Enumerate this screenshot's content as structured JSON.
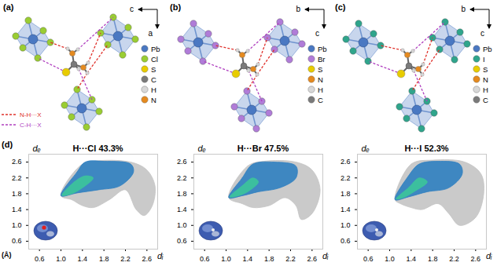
{
  "figure": {
    "structure_panels": [
      {
        "label": "(a)",
        "axes": [
          "c",
          "a"
        ],
        "legend": [
          {
            "label": "Pb",
            "color": "#4a78c2"
          },
          {
            "label": "Cl",
            "color": "#9acd32"
          },
          {
            "label": "S",
            "color": "#e8cc00"
          },
          {
            "label": "C",
            "color": "#7a7a7a"
          },
          {
            "label": "H",
            "color": "#d8d8d8"
          },
          {
            "label": "N",
            "color": "#e58a1f"
          }
        ]
      },
      {
        "label": "(b)",
        "axes": [
          "b",
          "c"
        ],
        "legend": [
          {
            "label": "Pb",
            "color": "#4a78c2"
          },
          {
            "label": "Br",
            "color": "#b07cd8"
          },
          {
            "label": "S",
            "color": "#e8cc00"
          },
          {
            "label": "N",
            "color": "#e58a1f"
          },
          {
            "label": "H",
            "color": "#d8d8d8"
          },
          {
            "label": "C",
            "color": "#7a7a7a"
          }
        ]
      },
      {
        "label": "(c)",
        "axes": [
          "b",
          "c"
        ],
        "legend": [
          {
            "label": "Pb",
            "color": "#4a78c2"
          },
          {
            "label": "I",
            "color": "#2fa58c"
          },
          {
            "label": "S",
            "color": "#e8cc00"
          },
          {
            "label": "N",
            "color": "#e58a1f"
          },
          {
            "label": "H",
            "color": "#d8d8d8"
          },
          {
            "label": "C",
            "color": "#7a7a7a"
          }
        ]
      }
    ],
    "line_legend": [
      {
        "label": "N-H···X",
        "color": "#e0302a",
        "line_style": "dashed"
      },
      {
        "label": "C-H···X",
        "color": "#b03fbf",
        "line_style": "dashed"
      }
    ],
    "fingerprint_label": "(d)",
    "unit_label": "(Å)"
  },
  "chart_data": [
    {
      "type": "area",
      "title": "H···Cl 43.3%",
      "x_label": "dᵢ",
      "y_label": "dₑ",
      "xlim": [
        0.4,
        2.8
      ],
      "ylim": [
        0.4,
        2.8
      ],
      "xticks": [
        0.6,
        {
          "value": 1,
          "label": "1.0"
        },
        1.4,
        1.8,
        2.2,
        2.6
      ],
      "yticks": [
        0.6,
        {
          "value": 1,
          "label": "1.0"
        },
        1.4,
        1.8,
        2.2,
        2.6
      ],
      "series": [
        {
          "color": "#c4c4c4",
          "x": [
            1.0,
            1.35,
            1.6,
            2.3,
            2.6,
            2.75,
            2.7,
            2.55,
            2.4,
            2.2,
            1.9,
            1.6,
            1.4,
            1.2
          ],
          "y": [
            1.75,
            2.5,
            2.62,
            2.6,
            2.4,
            2.0,
            1.5,
            1.25,
            1.4,
            1.9,
            1.65,
            1.45,
            1.5,
            1.65
          ]
        },
        {
          "color": "#2f7fc0",
          "x": [
            1.0,
            1.3,
            1.45,
            1.8,
            2.3,
            2.35,
            2.1,
            1.7,
            1.3
          ],
          "y": [
            1.75,
            2.35,
            2.6,
            2.62,
            2.55,
            2.35,
            2.0,
            1.9,
            1.82
          ]
        },
        {
          "color": "#3cc59a",
          "x": [
            1.02,
            1.25,
            1.45,
            1.6,
            1.4,
            1.2
          ],
          "y": [
            1.76,
            2.1,
            2.25,
            2.2,
            1.95,
            1.8
          ]
        }
      ]
    },
    {
      "type": "area",
      "title": "H···Br 47.5%",
      "x_label": "dᵢ",
      "y_label": "dₑ",
      "xlim": [
        0.4,
        2.8
      ],
      "ylim": [
        0.4,
        2.8
      ],
      "xticks": [
        0.6,
        {
          "value": 1,
          "label": "1.0"
        },
        1.4,
        1.8,
        2.2,
        2.6
      ],
      "yticks": [
        0.6,
        {
          "value": 1,
          "label": "1.0"
        },
        1.4,
        1.8,
        2.2,
        2.6
      ],
      "series": [
        {
          "color": "#c4c4c4",
          "x": [
            1.05,
            1.4,
            1.7,
            2.3,
            2.6,
            2.75,
            2.6,
            2.4,
            2.3,
            2.1,
            1.8,
            1.5,
            1.3
          ],
          "y": [
            1.7,
            2.5,
            2.62,
            2.6,
            2.4,
            1.9,
            1.3,
            1.15,
            1.5,
            1.7,
            1.5,
            1.45,
            1.55
          ]
        },
        {
          "color": "#2f7fc0",
          "x": [
            1.05,
            1.3,
            1.5,
            1.9,
            2.3,
            2.3,
            2.0,
            1.6,
            1.3
          ],
          "y": [
            1.7,
            2.2,
            2.55,
            2.6,
            2.5,
            2.2,
            1.95,
            1.85,
            1.75
          ]
        },
        {
          "color": "#3cc59a",
          "x": [
            1.07,
            1.3,
            1.5,
            1.6,
            1.4,
            1.2
          ],
          "y": [
            1.72,
            2.0,
            2.2,
            2.1,
            1.85,
            1.74
          ]
        }
      ]
    },
    {
      "type": "area",
      "title": "H···I 52.3%",
      "x_label": "dᵢ",
      "y_label": "dₑ",
      "xlim": [
        0.4,
        2.8
      ],
      "ylim": [
        0.4,
        2.8
      ],
      "xticks": [
        0.6,
        {
          "value": 1,
          "label": "1.0"
        },
        1.4,
        1.8,
        2.2,
        2.6
      ],
      "yticks": [
        0.6,
        {
          "value": 1,
          "label": "1.0"
        },
        1.4,
        1.8,
        2.2,
        2.6
      ],
      "series": [
        {
          "color": "#c4c4c4",
          "x": [
            1.1,
            1.4,
            1.8,
            2.4,
            2.7,
            2.75,
            2.6,
            2.3,
            2.1,
            1.9,
            1.6,
            1.4,
            1.2
          ],
          "y": [
            1.65,
            2.55,
            2.65,
            2.6,
            2.3,
            1.8,
            1.2,
            1.0,
            1.3,
            1.55,
            1.4,
            1.45,
            1.55
          ]
        },
        {
          "color": "#2f7fc0",
          "x": [
            1.1,
            1.35,
            1.55,
            1.9,
            2.3,
            2.35,
            2.1,
            1.7,
            1.35
          ],
          "y": [
            1.65,
            2.25,
            2.55,
            2.62,
            2.55,
            2.3,
            1.95,
            1.85,
            1.72
          ]
        },
        {
          "color": "#3cc59a",
          "x": [
            1.12,
            1.35,
            1.55,
            1.7,
            1.45,
            1.25
          ],
          "y": [
            1.67,
            1.95,
            2.2,
            2.1,
            1.85,
            1.7
          ]
        }
      ]
    }
  ]
}
